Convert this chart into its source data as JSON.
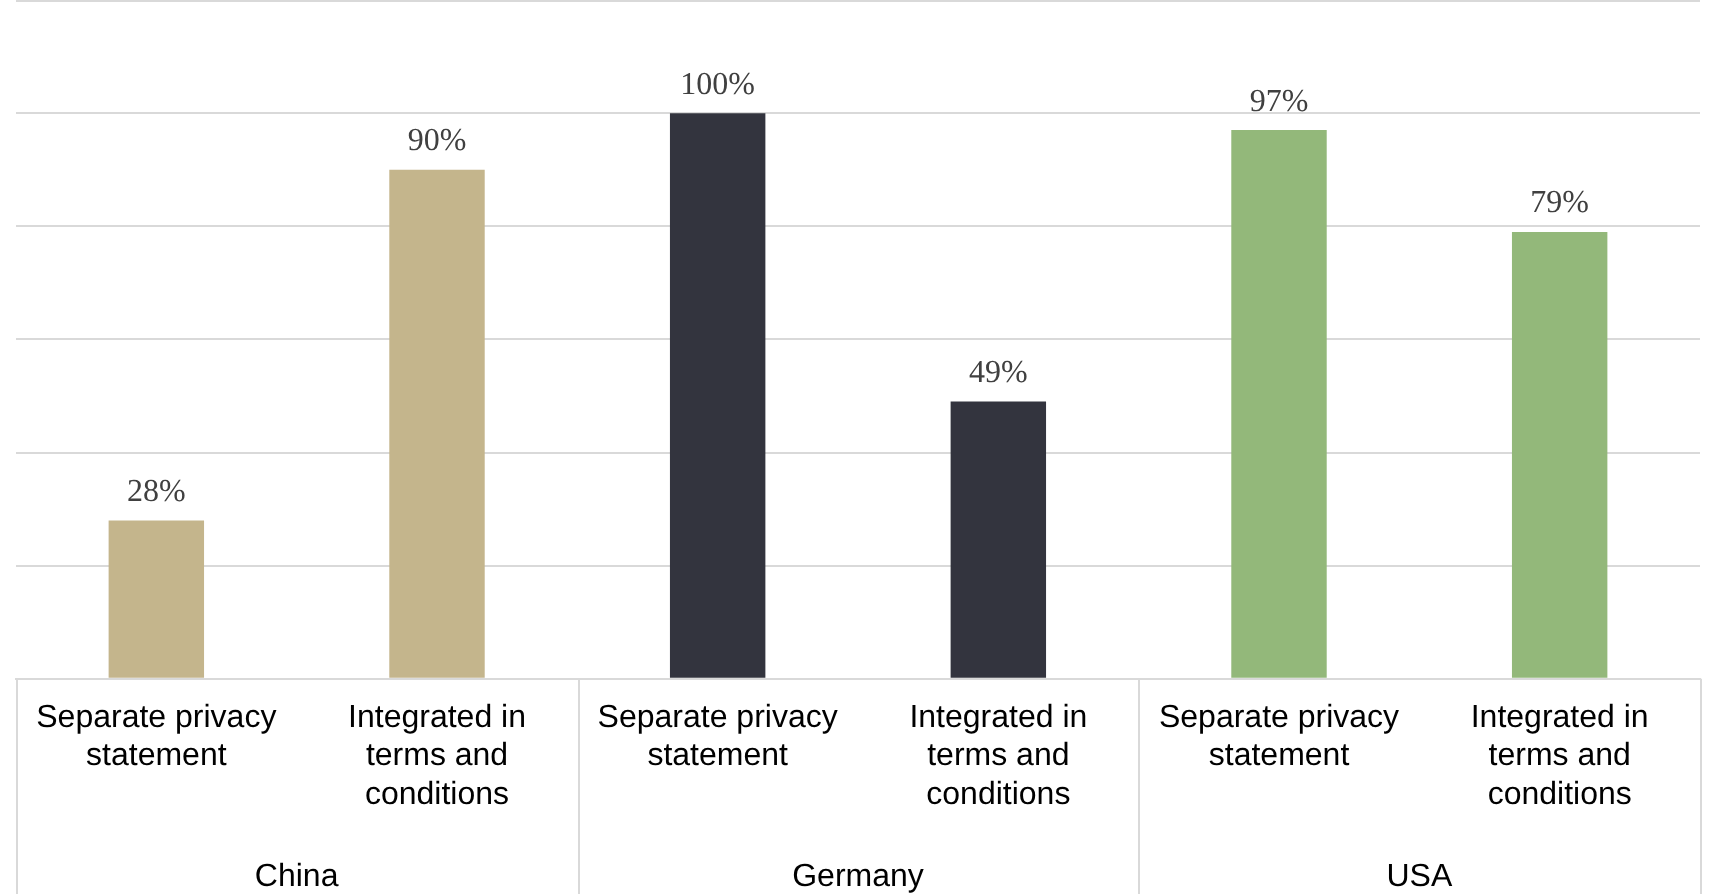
{
  "chart_data": {
    "type": "bar",
    "categories": [
      "Separate privacy statement",
      "Integrated in terms and conditions",
      "Separate privacy statement",
      "Integrated in terms and conditions",
      "Separate privacy statement",
      "Integrated in terms and conditions"
    ],
    "values": [
      28,
      90,
      100,
      49,
      97,
      79
    ],
    "colors": [
      "#c4b58c",
      "#c4b58c",
      "#33343e",
      "#33343e",
      "#93b87a",
      "#93b87a"
    ],
    "value_labels": [
      "28%",
      "90%",
      "100%",
      "49%",
      "97%",
      "79%"
    ],
    "annotations": [
      "China",
      "Germany",
      "USA"
    ],
    "ylim": [
      0,
      120
    ],
    "yticks": [
      {
        "value": 0,
        "label": null
      },
      {
        "value": 20,
        "label": null
      },
      {
        "value": 40,
        "label": null
      },
      {
        "value": 60,
        "label": null
      },
      {
        "value": 80,
        "label": null
      },
      {
        "value": 100,
        "label": null
      }
    ],
    "grid": "y",
    "tick_labels": "x",
    "legend": false
  }
}
